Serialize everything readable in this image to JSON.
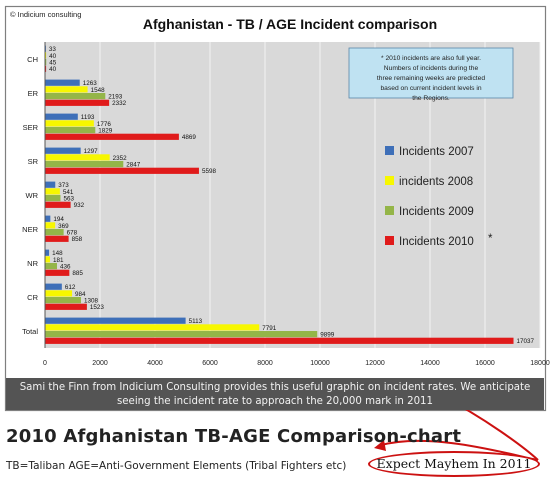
{
  "chart_data": {
    "type": "bar",
    "orientation": "horizontal",
    "credit": "© Indicium consulting",
    "title": "Afghanistan - TB / AGE Incident comparison",
    "categories": [
      "CH",
      "ER",
      "SER",
      "SR",
      "WR",
      "NER",
      "NR",
      "CR",
      "Total"
    ],
    "series": [
      {
        "name": "Incidents 2007",
        "color": "#3e6fb8",
        "values": [
          33,
          1263,
          1193,
          1297,
          373,
          194,
          148,
          612,
          5113
        ]
      },
      {
        "name": "incidents 2008",
        "color": "#f7f700",
        "values": [
          40,
          1548,
          1776,
          2352,
          541,
          369,
          181,
          984,
          7791
        ]
      },
      {
        "name": "Incidents 2009",
        "color": "#94b548",
        "values": [
          45,
          2193,
          1829,
          2847,
          563,
          678,
          436,
          1308,
          9899
        ]
      },
      {
        "name": "Incidents 2010",
        "color": "#e01b1b",
        "values": [
          40,
          2332,
          4869,
          5598,
          932,
          858,
          885,
          1523,
          17037
        ]
      }
    ],
    "legend_marker": "*",
    "xlim": [
      0,
      18000
    ],
    "xticks": [
      0,
      2000,
      4000,
      6000,
      8000,
      10000,
      12000,
      14000,
      16000,
      18000
    ],
    "grid": true,
    "legend_position": "right",
    "note": "* 2010 incidents are also full year. Numbers of incidents during the three remaining weeks are predicted based on current incident levels in the Regions."
  },
  "caption": "Sami the Finn from Indicium Consulting provides this useful graphic on incident rates. We anticipate seeing the incident rate to approach the 20,000 mark in 2011",
  "post_title": "2010 Afghanistan TB-AGE Comparison-chart",
  "subtitle": "TB=Taliban AGE=Anti-Government Elements (Tribal Fighters etc)",
  "annotation": "Expect Mayhem In 2011",
  "colors": {
    "arrow": "#cc1111",
    "caption_bg": "#545454"
  }
}
